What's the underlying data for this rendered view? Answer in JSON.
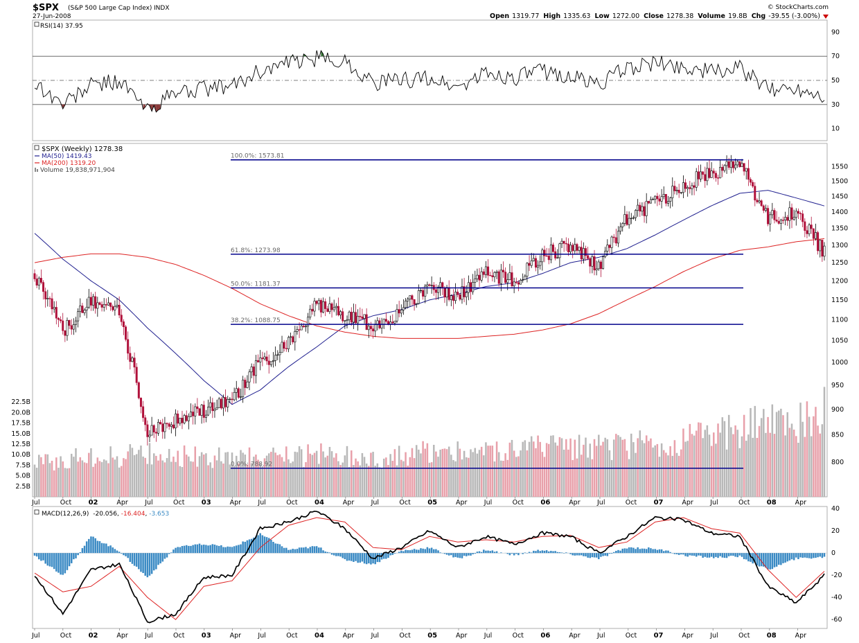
{
  "header": {
    "symbol": "$SPX",
    "name": "(S&P 500 Large Cap Index)",
    "exchange": "INDX",
    "date": "27-Jun-2008",
    "copyright": "© StockCharts.com",
    "stats": [
      {
        "label": "Open",
        "value": "1319.77"
      },
      {
        "label": "High",
        "value": "1335.63"
      },
      {
        "label": "Low",
        "value": "1272.00"
      },
      {
        "label": "Close",
        "value": "1278.38"
      },
      {
        "label": "Volume",
        "value": "19.8B"
      },
      {
        "label": "Chg",
        "value": "-39.55 (-3.00%)"
      }
    ],
    "down_arrow_color": "#cc0000"
  },
  "colors": {
    "up_candle": "#000000",
    "down_candle": "#b0103a",
    "ma50": "#1f1f8f",
    "ma200": "#dd2222",
    "fib_line": "#00008b",
    "vol_up": "#b8b8b8",
    "vol_down": "#e8a0aa",
    "macd_line": "#000000",
    "macd_signal": "#dd2222",
    "macd_hist": "#3a8ac4",
    "rsi_over": "#2f6f2f",
    "rsi_under": "#8a3a3a"
  },
  "legend_price": {
    "main": "$SPX (Weekly) 1278.38",
    "ma50": "MA(50) 1419.43",
    "ma200": "MA(200) 1319.20",
    "volume": "Volume 19,838,971,904"
  },
  "legend_rsi": "RSI(14) 37.95",
  "legend_macd": {
    "prefix": "MACD(12,26,9)",
    "v1": "-20.056",
    "v2": "-16.404",
    "v3": "-3.653"
  },
  "x_axis": [
    {
      "label": "Jul",
      "bold": false
    },
    {
      "label": "Oct",
      "bold": false
    },
    {
      "label": "02",
      "bold": true
    },
    {
      "label": "Apr",
      "bold": false
    },
    {
      "label": "Jul",
      "bold": false
    },
    {
      "label": "Oct",
      "bold": false
    },
    {
      "label": "03",
      "bold": true
    },
    {
      "label": "Apr",
      "bold": false
    },
    {
      "label": "Jul",
      "bold": false
    },
    {
      "label": "Oct",
      "bold": false
    },
    {
      "label": "04",
      "bold": true
    },
    {
      "label": "Apr",
      "bold": false
    },
    {
      "label": "Jul",
      "bold": false
    },
    {
      "label": "Oct",
      "bold": false
    },
    {
      "label": "05",
      "bold": true
    },
    {
      "label": "Apr",
      "bold": false
    },
    {
      "label": "Jul",
      "bold": false
    },
    {
      "label": "Oct",
      "bold": false
    },
    {
      "label": "06",
      "bold": true
    },
    {
      "label": "Apr",
      "bold": false
    },
    {
      "label": "Jul",
      "bold": false
    },
    {
      "label": "Oct",
      "bold": false
    },
    {
      "label": "07",
      "bold": true
    },
    {
      "label": "Apr",
      "bold": false
    },
    {
      "label": "Jul",
      "bold": false
    },
    {
      "label": "Oct",
      "bold": false
    },
    {
      "label": "08",
      "bold": true
    },
    {
      "label": "Apr",
      "bold": false
    }
  ],
  "chart_data": [
    {
      "type": "line",
      "name": "RSI(14)",
      "ylim": [
        0,
        100
      ],
      "yticks": [
        10,
        30,
        50,
        70,
        90
      ],
      "reference_lines": [
        30,
        50,
        70
      ],
      "x": [
        "Jul 2001",
        "Oct 2001",
        "Jan 2002",
        "Apr 2002",
        "Jul 2002",
        "Oct 2002",
        "Jan 2003",
        "Apr 2003",
        "Jul 2003",
        "Oct 2003",
        "Jan 2004",
        "Apr 2004",
        "Jul 2004",
        "Oct 2004",
        "Jan 2005",
        "Apr 2005",
        "Jul 2005",
        "Oct 2005",
        "Jan 2006",
        "Apr 2006",
        "Jul 2006",
        "Oct 2006",
        "Jan 2007",
        "Apr 2007",
        "Jul 2007",
        "Oct 2007",
        "Jan 2008",
        "Apr 2008",
        "Jun 2008"
      ],
      "values": [
        48,
        30,
        46,
        50,
        25,
        40,
        43,
        45,
        58,
        64,
        68,
        66,
        48,
        50,
        52,
        44,
        56,
        52,
        58,
        53,
        47,
        60,
        64,
        61,
        57,
        60,
        42,
        44,
        38
      ]
    },
    {
      "type": "line",
      "name": "$SPX (Weekly)",
      "y_scale": "log",
      "ylim": [
        740,
        1620
      ],
      "yticks": [
        800,
        850,
        900,
        950,
        1000,
        1050,
        1100,
        1150,
        1200,
        1250,
        1300,
        1350,
        1400,
        1450,
        1500,
        1550
      ],
      "x": [
        "Jul 2001",
        "Oct 2001",
        "Jan 2002",
        "Apr 2002",
        "Jul 2002",
        "Oct 2002",
        "Jan 2003",
        "Apr 2003",
        "Jul 2003",
        "Oct 2003",
        "Jan 2004",
        "Apr 2004",
        "Jul 2004",
        "Oct 2004",
        "Jan 2005",
        "Apr 2005",
        "Jul 2005",
        "Oct 2005",
        "Jan 2006",
        "Apr 2006",
        "Jul 2006",
        "Oct 2006",
        "Jan 2007",
        "Apr 2007",
        "Jul 2007",
        "Oct 2007",
        "Jan 2008",
        "Apr 2008",
        "Jun 2008"
      ],
      "series": [
        {
          "name": "$SPX (Weekly)",
          "values": [
            1220,
            1070,
            1150,
            1120,
            850,
            880,
            895,
            915,
            1000,
            1040,
            1135,
            1110,
            1090,
            1120,
            1195,
            1160,
            1225,
            1200,
            1270,
            1300,
            1240,
            1380,
            1430,
            1490,
            1530,
            1560,
            1380,
            1400,
            1278.38
          ]
        },
        {
          "name": "MA(50)",
          "values": [
            1335,
            1260,
            1200,
            1150,
            1080,
            1020,
            960,
            910,
            940,
            990,
            1035,
            1085,
            1110,
            1125,
            1150,
            1165,
            1185,
            1195,
            1220,
            1250,
            1265,
            1290,
            1330,
            1375,
            1420,
            1460,
            1470,
            1445,
            1419.43
          ]
        },
        {
          "name": "MA(200)",
          "values": [
            1250,
            1265,
            1275,
            1275,
            1265,
            1245,
            1215,
            1180,
            1140,
            1110,
            1085,
            1070,
            1060,
            1055,
            1055,
            1055,
            1060,
            1065,
            1075,
            1090,
            1115,
            1150,
            1185,
            1225,
            1260,
            1285,
            1295,
            1310,
            1319.2
          ]
        }
      ],
      "fibonacci": [
        {
          "level": "100.0%",
          "price": 1573.81,
          "label": "100.0%: 1573.81"
        },
        {
          "level": "61.8%",
          "price": 1273.98,
          "label": "61.8%: 1273.98"
        },
        {
          "level": "50.0%",
          "price": 1181.37,
          "label": "50.0%: 1181.37"
        },
        {
          "level": "38.2%",
          "price": 1088.75,
          "label": "38.2%: 1088.75"
        },
        {
          "level": "0.0%",
          "price": 788.92,
          "label": "0.0%: 788.92"
        }
      ]
    },
    {
      "type": "bar",
      "name": "Volume",
      "ylim": [
        0,
        25
      ],
      "ylabel_unit": "B",
      "yticks": [
        "2.5B",
        "5.0B",
        "7.5B",
        "10.0B",
        "12.5B",
        "15.0B",
        "17.5B",
        "20.0B",
        "22.5B"
      ],
      "x": [
        "Jul 2001",
        "Oct 2001",
        "Jan 2002",
        "Apr 2002",
        "Jul 2002",
        "Oct 2002",
        "Jan 2003",
        "Apr 2003",
        "Jul 2003",
        "Oct 2003",
        "Jan 2004",
        "Apr 2004",
        "Jul 2004",
        "Oct 2004",
        "Jan 2005",
        "Apr 2005",
        "Jul 2005",
        "Oct 2005",
        "Jan 2006",
        "Apr 2006",
        "Jul 2006",
        "Oct 2006",
        "Jan 2007",
        "Apr 2007",
        "Jul 2007",
        "Oct 2007",
        "Jan 2008",
        "Apr 2008",
        "Jun 2008"
      ],
      "values": [
        8,
        8.5,
        9,
        9,
        10,
        9.5,
        9,
        9,
        8.5,
        9,
        9.5,
        9.5,
        9,
        9.5,
        10,
        10,
        10,
        10.5,
        11,
        11,
        11,
        11.5,
        12,
        12.5,
        14,
        15,
        17,
        16,
        19.8
      ]
    },
    {
      "type": "line",
      "name": "MACD(12,26,9)",
      "ylim": [
        -68,
        42
      ],
      "yticks": [
        -60,
        -40,
        -20,
        0,
        20,
        40
      ],
      "x": [
        "Jul 2001",
        "Oct 2001",
        "Jan 2002",
        "Apr 2002",
        "Jul 2002",
        "Oct 2002",
        "Jan 2003",
        "Apr 2003",
        "Jul 2003",
        "Oct 2003",
        "Jan 2004",
        "Apr 2004",
        "Jul 2004",
        "Oct 2004",
        "Jan 2005",
        "Apr 2005",
        "Jul 2005",
        "Oct 2005",
        "Jan 2006",
        "Apr 2006",
        "Jul 2006",
        "Oct 2006",
        "Jan 2007",
        "Apr 2007",
        "Jul 2007",
        "Oct 2007",
        "Jan 2008",
        "Apr 2008",
        "Jun 2008"
      ],
      "series": [
        {
          "name": "MACD",
          "values": [
            -20,
            -55,
            -15,
            -10,
            -62,
            -55,
            -22,
            -20,
            22,
            28,
            38,
            22,
            -5,
            5,
            20,
            5,
            15,
            8,
            18,
            15,
            0,
            15,
            32,
            30,
            18,
            15,
            -30,
            -45,
            -20.056
          ]
        },
        {
          "name": "Signal",
          "values": [
            -18,
            -35,
            -30,
            -12,
            -40,
            -60,
            -30,
            -25,
            5,
            25,
            32,
            28,
            5,
            3,
            15,
            10,
            12,
            10,
            15,
            16,
            5,
            10,
            28,
            32,
            22,
            18,
            -15,
            -40,
            -16.404
          ]
        },
        {
          "name": "Histogram",
          "values": [
            -2,
            -20,
            15,
            2,
            -22,
            5,
            8,
            5,
            17,
            3,
            6,
            -6,
            -10,
            2,
            5,
            -5,
            3,
            -2,
            3,
            -1,
            -5,
            5,
            4,
            -2,
            -4,
            -3,
            -15,
            -5,
            -3.653
          ]
        }
      ]
    }
  ]
}
